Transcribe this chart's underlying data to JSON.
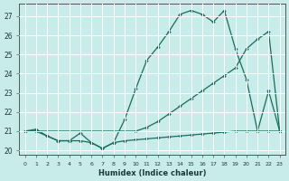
{
  "xlabel": "Humidex (Indice chaleur)",
  "bg_color": "#c8ecea",
  "grid_color": "#aaddda",
  "line_color": "#1a6b5a",
  "xlim": [
    -0.5,
    23.5
  ],
  "ylim": [
    19.75,
    27.65
  ],
  "xticks": [
    0,
    1,
    2,
    3,
    4,
    5,
    6,
    7,
    8,
    9,
    10,
    11,
    12,
    13,
    14,
    15,
    16,
    17,
    18,
    19,
    20,
    21,
    22,
    23
  ],
  "yticks": [
    20,
    21,
    22,
    23,
    24,
    25,
    26,
    27
  ],
  "line1_x": [
    0,
    1,
    2,
    3,
    4,
    5,
    6,
    7,
    8,
    9,
    10,
    11,
    12,
    13,
    14,
    15,
    16,
    17,
    18,
    19,
    20,
    21,
    22,
    23
  ],
  "line1_y": [
    21.0,
    21.1,
    20.75,
    20.5,
    20.5,
    20.9,
    20.4,
    20.1,
    20.4,
    21.6,
    23.2,
    24.7,
    25.4,
    26.2,
    27.1,
    27.3,
    27.1,
    26.7,
    27.3,
    25.3,
    23.7,
    21.0,
    23.1,
    21.0
  ],
  "line2_x": [
    0,
    10,
    11,
    12,
    13,
    14,
    15,
    16,
    17,
    18,
    19,
    20,
    21,
    22,
    23
  ],
  "line2_y": [
    21.0,
    21.0,
    21.2,
    21.5,
    21.9,
    22.3,
    22.7,
    23.1,
    23.5,
    23.9,
    24.3,
    25.3,
    25.8,
    26.2,
    21.0
  ],
  "line3_x": [
    0,
    1,
    2,
    3,
    4,
    5,
    6,
    7,
    8,
    9,
    10,
    11,
    12,
    13,
    14,
    15,
    16,
    17,
    18,
    19,
    20,
    21,
    22,
    23
  ],
  "line3_y": [
    21.0,
    21.0,
    20.75,
    20.5,
    20.5,
    20.5,
    20.4,
    20.1,
    20.4,
    20.5,
    20.55,
    20.6,
    20.65,
    20.7,
    20.75,
    20.8,
    20.85,
    20.9,
    20.95,
    21.0,
    21.0,
    21.0,
    21.0,
    21.0
  ]
}
